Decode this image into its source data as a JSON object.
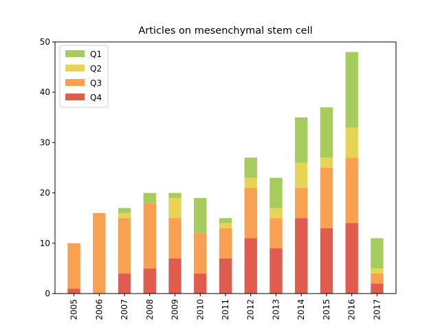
{
  "chart_data": {
    "type": "bar",
    "stacked": true,
    "title": "Articles on mesenchymal stem cell",
    "xlabel": "",
    "ylabel": "",
    "ylim": [
      0,
      50
    ],
    "yticks": [
      0,
      10,
      20,
      30,
      40,
      50
    ],
    "grid": false,
    "legend_position": "top-left",
    "categories": [
      "2005",
      "2006",
      "2007",
      "2008",
      "2009",
      "2010",
      "2011",
      "2012",
      "2013",
      "2014",
      "2015",
      "2016",
      "2017"
    ],
    "series": [
      {
        "name": "Q4",
        "color": "#e05c4f",
        "values": [
          1,
          0,
          4,
          5,
          7,
          4,
          7,
          11,
          9,
          15,
          13,
          14,
          2
        ]
      },
      {
        "name": "Q3",
        "color": "#f9a152",
        "values": [
          9,
          16,
          11,
          13,
          8,
          8,
          6,
          10,
          6,
          6,
          12,
          13,
          2
        ]
      },
      {
        "name": "Q2",
        "color": "#e8d453",
        "values": [
          0,
          0,
          1,
          0,
          4,
          0,
          1,
          2,
          2,
          5,
          2,
          6,
          1
        ]
      },
      {
        "name": "Q1",
        "color": "#a6cc5e",
        "values": [
          0,
          0,
          1,
          2,
          1,
          7,
          1,
          4,
          6,
          9,
          10,
          15,
          6
        ]
      }
    ]
  }
}
